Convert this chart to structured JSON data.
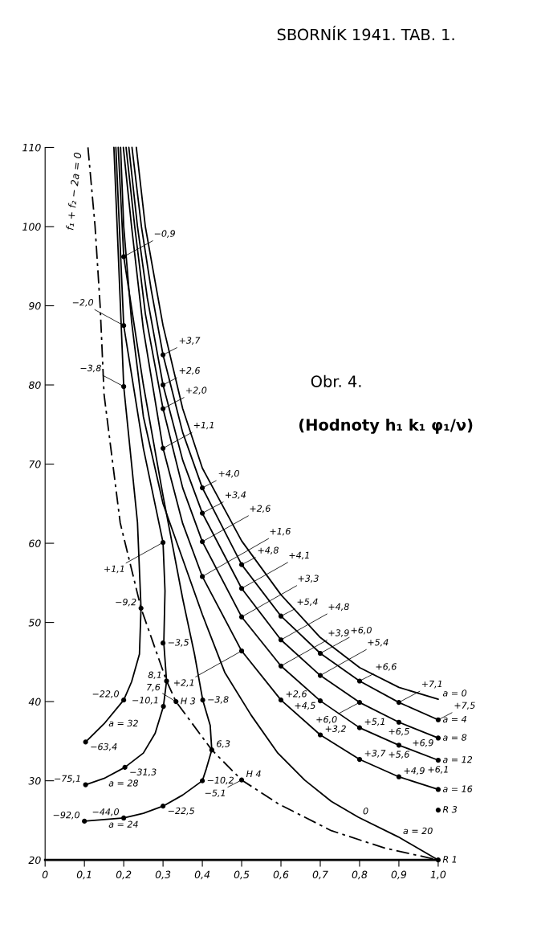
{
  "chart_data": {
    "type": "line",
    "title": "SBORNÍK 1941. TAB. 1.",
    "subtitle": "Obr. 4.",
    "xlim": [
      0,
      1.0
    ],
    "ylim": [
      20,
      110
    ],
    "xticks": [
      {
        "value": 0,
        "label": "0"
      },
      {
        "value": 0.1,
        "label": "0,1"
      },
      {
        "value": 0.2,
        "label": "0,2"
      },
      {
        "value": 0.3,
        "label": "0,3"
      },
      {
        "value": 0.4,
        "label": "0,4"
      },
      {
        "value": 0.5,
        "label": "0,5"
      },
      {
        "value": 0.6,
        "label": "0,6"
      },
      {
        "value": 0.7,
        "label": "0,7"
      },
      {
        "value": 0.8,
        "label": "0,8"
      },
      {
        "value": 0.9,
        "label": "0,9"
      },
      {
        "value": 1.0,
        "label": "1,0"
      }
    ],
    "yticks": [
      20,
      30,
      40,
      50,
      60,
      70,
      80,
      90,
      100,
      110
    ],
    "series": [
      {
        "color": "#000000",
        "x": [
          0.232,
          0.255,
          0.28,
          0.3,
          0.35,
          0.4,
          0.5,
          0.6,
          0.7,
          0.8,
          0.9,
          1.0
        ],
        "values": [
          110,
          100,
          93,
          87.5,
          77,
          69.5,
          60.3,
          53.5,
          48.1,
          44.3,
          41.8,
          40.3
        ]
      },
      {
        "color": "#000000",
        "x": [
          0.221,
          0.245,
          0.27,
          0.3,
          0.35,
          0.4,
          0.5,
          0.6,
          0.7,
          0.8,
          0.9,
          1.0
        ],
        "values": [
          110,
          100,
          92,
          83.8,
          74,
          67.0,
          57.3,
          50.8,
          46.1,
          42.6,
          39.9,
          37.7
        ]
      },
      {
        "color": "#000000",
        "x": [
          0.213,
          0.235,
          0.26,
          0.3,
          0.35,
          0.4,
          0.5,
          0.6,
          0.7,
          0.8,
          0.9,
          1.0
        ],
        "values": [
          110,
          100,
          91,
          80.0,
          70.5,
          63.8,
          54.3,
          47.8,
          43.3,
          39.9,
          37.4,
          35.4
        ]
      },
      {
        "color": "#000000",
        "x": [
          0.206,
          0.228,
          0.255,
          0.3,
          0.35,
          0.4,
          0.5,
          0.6,
          0.7,
          0.8,
          0.9,
          1.0
        ],
        "values": [
          110,
          100,
          89,
          77.0,
          67,
          60.2,
          50.7,
          44.5,
          40.1,
          36.7,
          34.5,
          32.6
        ]
      },
      {
        "color": "#000000",
        "x": [
          0.199,
          0.22,
          0.25,
          0.3,
          0.35,
          0.4,
          0.5,
          0.6,
          0.7,
          0.8,
          0.9,
          1.0
        ],
        "values": [
          110,
          100,
          87,
          72.0,
          62.5,
          55.8,
          46.4,
          40.2,
          35.8,
          32.7,
          30.5,
          28.9
        ]
      },
      {
        "color": "#000000",
        "x": [
          0.192,
          0.2,
          0.22,
          0.25,
          0.3,
          0.35,
          0.4,
          0.457,
          0.524,
          0.592,
          0.66,
          0.728,
          0.797,
          0.899,
          1.0
        ],
        "values": [
          110,
          100,
          88,
          76,
          65,
          58,
          51,
          43.7,
          38.3,
          33.5,
          30.1,
          27.4,
          25.4,
          22.9,
          20
        ]
      },
      {
        "color": "#000000",
        "x": [
          0.186,
          0.2,
          0.25,
          0.3,
          0.327,
          0.35,
          0.38,
          0.401,
          0.42,
          0.424,
          0.41,
          0.4,
          0.35,
          0.3,
          0.25,
          0.2,
          0.15,
          0.1
        ],
        "values": [
          110,
          96.2,
          80,
          66,
          59,
          53,
          46,
          40.2,
          37,
          33.9,
          31.5,
          30.0,
          28.2,
          26.8,
          25.9,
          25.3,
          25.1,
          24.9
        ]
      },
      {
        "color": "#000000",
        "x": [
          0.18,
          0.2,
          0.25,
          0.3,
          0.305,
          0.302,
          0.309,
          0.301,
          0.28,
          0.25,
          0.203,
          0.15,
          0.103
        ],
        "values": [
          110,
          87.5,
          72,
          60.1,
          54,
          47.4,
          42.6,
          39.4,
          36,
          33.5,
          31.7,
          30.3,
          29.5
        ]
      },
      {
        "color": "#000000",
        "x": [
          0.175,
          0.2,
          0.22,
          0.235,
          0.244,
          0.24,
          0.22,
          0.2,
          0.15,
          0.103
        ],
        "values": [
          110,
          79.8,
          70,
          62.6,
          51.8,
          46,
          42.5,
          40.2,
          37.2,
          34.9
        ]
      },
      {
        "name": "f₁ + f₂ − 2a = 0",
        "color": "#000000",
        "line_style": "dashed",
        "x": [
          0.109,
          0.127,
          0.14,
          0.15,
          0.191,
          0.244,
          0.309,
          0.333,
          0.424,
          0.5,
          0.593,
          0.728,
          0.864,
          1.0
        ],
        "values": [
          110,
          100.1,
          90,
          78.8,
          62.6,
          51.8,
          42.6,
          40.0,
          33.9,
          30.1,
          27.1,
          23.7,
          21.5,
          20
        ]
      },
      {
        "type": "scatter",
        "marker": "circle",
        "color": "#000000",
        "x": [
          0.3,
          0.3,
          0.3,
          0.3,
          0.4,
          0.4,
          0.4,
          0.4,
          0.5,
          0.5,
          0.5,
          0.5,
          0.6,
          0.6,
          0.6,
          0.6,
          0.7,
          0.7,
          0.7,
          0.7,
          0.8,
          0.8,
          0.8,
          0.8,
          0.9,
          0.9,
          0.9,
          0.9,
          1.0,
          1.0,
          1.0,
          1.0,
          0.2,
          0.2,
          0.2,
          0.3,
          0.244,
          0.3,
          0.309,
          0.301,
          0.2,
          0.103,
          0.203,
          0.103,
          0.401,
          0.424,
          0.4,
          0.3,
          0.2,
          0.1,
          0.333,
          0.5,
          1.0,
          1.0
        ],
        "values": [
          83.8,
          80.0,
          77.0,
          72.0,
          67.0,
          63.8,
          60.2,
          55.8,
          57.3,
          54.3,
          50.7,
          46.4,
          50.8,
          47.8,
          44.5,
          40.2,
          46.1,
          43.3,
          40.1,
          35.8,
          42.6,
          39.9,
          36.7,
          32.7,
          39.9,
          37.4,
          34.5,
          30.5,
          37.7,
          35.4,
          32.6,
          28.9,
          96.2,
          87.5,
          79.8,
          60.1,
          51.8,
          47.4,
          42.6,
          39.4,
          40.2,
          34.9,
          31.7,
          29.5,
          40.2,
          33.9,
          30.0,
          26.8,
          25.3,
          24.9,
          40.0,
          30.1,
          26.3,
          20
        ]
      }
    ],
    "annotations": [
      "(Hodnoty h₁ k₁ φ₁/ν)",
      {
        "text": "+3,7",
        "x": 0.3,
        "y": 83.8
      },
      {
        "text": "+2,6",
        "x": 0.3,
        "y": 80.0
      },
      {
        "text": "+2,0",
        "x": 0.3,
        "y": 77.0
      },
      {
        "text": "+1,1",
        "x": 0.3,
        "y": 72.0
      },
      {
        "text": "+4,0",
        "x": 0.4,
        "y": 67.0
      },
      {
        "text": "+3,4",
        "x": 0.4,
        "y": 63.8
      },
      {
        "text": "+2,6",
        "x": 0.4,
        "y": 60.2
      },
      {
        "text": "+1,6",
        "x": 0.4,
        "y": 55.8
      },
      {
        "text": "+4,8",
        "x": 0.5,
        "y": 57.3
      },
      {
        "text": "+4,1",
        "x": 0.5,
        "y": 54.3
      },
      {
        "text": "+3,3",
        "x": 0.5,
        "y": 50.7
      },
      {
        "text": "+2,1",
        "x": 0.5,
        "y": 46.4
      },
      {
        "text": "+5,4",
        "x": 0.6,
        "y": 50.8
      },
      {
        "text": "+4,8",
        "x": 0.6,
        "y": 47.8
      },
      {
        "text": "+3,9",
        "x": 0.6,
        "y": 44.5
      },
      {
        "text": "+2,6",
        "x": 0.6,
        "y": 40.2
      },
      {
        "text": "+6,0",
        "x": 0.7,
        "y": 46.1
      },
      {
        "text": "+5,4",
        "x": 0.7,
        "y": 43.3
      },
      {
        "text": "+4,5",
        "x": 0.7,
        "y": 40.1
      },
      {
        "text": "+3,2",
        "x": 0.7,
        "y": 35.8
      },
      {
        "text": "+6,6",
        "x": 0.8,
        "y": 42.6
      },
      {
        "text": "+6,0",
        "x": 0.8,
        "y": 39.9
      },
      {
        "text": "+5,1",
        "x": 0.8,
        "y": 36.7
      },
      {
        "text": "+3,7",
        "x": 0.8,
        "y": 32.7
      },
      {
        "text": "+7,1",
        "x": 0.9,
        "y": 39.9
      },
      {
        "text": "+6,5",
        "x": 0.9,
        "y": 37.4
      },
      {
        "text": "+5,6",
        "x": 0.9,
        "y": 34.5
      },
      {
        "text": "+4,9",
        "x": 0.9,
        "y": 30.5
      },
      {
        "text": "a = 0",
        "x": 1.0,
        "y": 40.3
      },
      {
        "text": "a = 4",
        "x": 1.0,
        "y": 37.7
      },
      {
        "text": "+7,5",
        "x": 1.0,
        "y": 37.7
      },
      {
        "text": "a = 8",
        "x": 1.0,
        "y": 35.4
      },
      {
        "text": "+6,9",
        "x": 1.0,
        "y": 35.4
      },
      {
        "text": "a = 12",
        "x": 1.0,
        "y": 32.6
      },
      {
        "text": "+6,1",
        "x": 1.0,
        "y": 32.6
      },
      {
        "text": "a = 16",
        "x": 1.0,
        "y": 28.9
      },
      {
        "text": "0",
        "x": 0.797,
        "y": 25.4
      },
      {
        "text": "a = 20",
        "x": 0.899,
        "y": 22.9
      },
      {
        "text": "R 3",
        "x": 1.0,
        "y": 26.3
      },
      {
        "text": "R 1",
        "x": 1.0,
        "y": 20
      },
      {
        "text": "−0,9",
        "x": 0.2,
        "y": 96.2
      },
      {
        "text": "−2,0",
        "x": 0.2,
        "y": 87.5
      },
      {
        "text": "−3,8",
        "x": 0.2,
        "y": 79.8
      },
      {
        "text": "+1,1",
        "x": 0.3,
        "y": 60.1
      },
      {
        "text": "−9,2",
        "x": 0.244,
        "y": 51.8
      },
      {
        "text": "−3,5",
        "x": 0.3,
        "y": 47.4
      },
      {
        "text": "8,1",
        "x": 0.309,
        "y": 42.6
      },
      {
        "text": "−10,1",
        "x": 0.301,
        "y": 39.4
      },
      {
        "text": "−22,0",
        "x": 0.2,
        "y": 40.2
      },
      {
        "text": "a = 32",
        "x": 0.15,
        "y": 37.2
      },
      {
        "text": "−63,4",
        "x": 0.103,
        "y": 34.9
      },
      {
        "text": "a = 28",
        "x": 0.15,
        "y": 30.3
      },
      {
        "text": "−31,3",
        "x": 0.203,
        "y": 31.7
      },
      {
        "text": "−75,1",
        "x": 0.103,
        "y": 29.5
      },
      {
        "text": "a = 24",
        "x": 0.15,
        "y": 25.1
      },
      {
        "text": "−44,0",
        "x": 0.2,
        "y": 25.3
      },
      {
        "text": "−92,0",
        "x": 0.1,
        "y": 24.9
      },
      {
        "text": "−22,5",
        "x": 0.3,
        "y": 26.8
      },
      {
        "text": "−10,2",
        "x": 0.4,
        "y": 30.0
      },
      {
        "text": "6,3",
        "x": 0.424,
        "y": 33.9
      },
      {
        "text": "−3,8",
        "x": 0.401,
        "y": 40.2
      },
      {
        "text": "H 3",
        "x": 0.333,
        "y": 40.0
      },
      {
        "text": "7,6",
        "x": 0.333,
        "y": 40.0
      },
      {
        "text": "H 4",
        "x": 0.5,
        "y": 30.1
      },
      {
        "text": "−5,1",
        "x": 0.5,
        "y": 30.1
      }
    ]
  }
}
